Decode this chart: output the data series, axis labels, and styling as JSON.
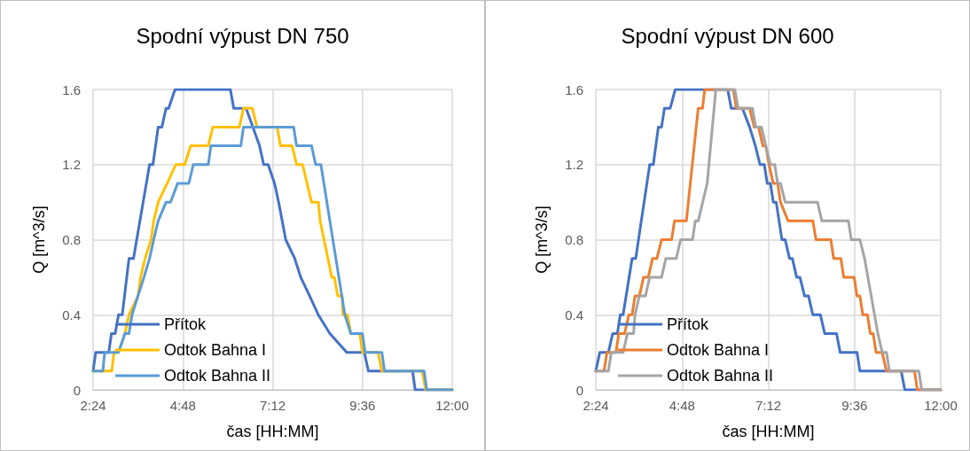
{
  "chart_data": [
    {
      "type": "line",
      "title": "Spodní výpust DN 750",
      "xlabel": "čas [HH:MM]",
      "ylabel": "Q [m^3/s]",
      "xlim": [
        2.4,
        12
      ],
      "xticks": [
        {
          "value": 2.4,
          "label": "2:24"
        },
        {
          "value": 4.8,
          "label": "4:48"
        },
        {
          "value": 7.2,
          "label": "7:12"
        },
        {
          "value": 9.6,
          "label": "9:36"
        },
        {
          "value": 12,
          "label": "12:00"
        }
      ],
      "ylim": [
        0,
        1.6
      ],
      "yticks": [
        0,
        0.4,
        0.8,
        1.2,
        1.6
      ],
      "grid": true,
      "legend": "bottom left",
      "marker": "none",
      "line_style": "solid",
      "series": [
        {
          "name": "Přítok",
          "color": "#4472c4",
          "x": [
            2.4,
            2.47,
            2.82,
            2.89,
            2.99,
            3.08,
            3.18,
            3.36,
            3.48,
            3.91,
            4.0,
            4.14,
            4.24,
            4.35,
            4.42,
            4.59,
            6.07,
            6.16,
            6.49,
            6.85,
            6.96,
            7.08,
            7.25,
            7.36,
            7.55,
            7.79,
            7.95,
            8.19,
            8.42,
            8.73,
            9.18,
            9.65,
            9.76,
            10.94,
            11.01,
            12
          ],
          "values": [
            0.1,
            0.2,
            0.2,
            0.3,
            0.3,
            0.4,
            0.4,
            0.7,
            0.7,
            1.2,
            1.2,
            1.4,
            1.4,
            1.5,
            1.5,
            1.6,
            1.6,
            1.5,
            1.5,
            1.3,
            1.2,
            1.2,
            1.1,
            1.0,
            0.8,
            0.7,
            0.6,
            0.5,
            0.4,
            0.3,
            0.2,
            0.2,
            0.1,
            0.1,
            0,
            0
          ]
        },
        {
          "name": "Odtok Bahna I",
          "color": "#ffc000",
          "x": [
            2.4,
            2.9,
            2.96,
            3.08,
            3.25,
            3.36,
            3.6,
            3.67,
            3.79,
            3.95,
            4.02,
            4.14,
            4.38,
            4.61,
            4.85,
            5.01,
            5.48,
            5.6,
            6.31,
            6.42,
            6.66,
            6.78,
            7.32,
            7.41,
            7.72,
            7.84,
            8.0,
            8.12,
            8.24,
            8.42,
            8.47,
            8.78,
            8.85,
            8.94,
            9.06,
            9.08,
            9.2,
            9.29,
            9.53,
            9.6,
            10.02,
            10.12,
            11.2,
            11.29,
            12
          ],
          "values": [
            0.1,
            0.1,
            0.2,
            0.2,
            0.3,
            0.4,
            0.5,
            0.6,
            0.7,
            0.8,
            0.9,
            1.0,
            1.1,
            1.2,
            1.2,
            1.3,
            1.3,
            1.4,
            1.4,
            1.5,
            1.5,
            1.4,
            1.4,
            1.3,
            1.3,
            1.2,
            1.2,
            1.1,
            1.0,
            1.0,
            0.9,
            0.6,
            0.6,
            0.5,
            0.5,
            0.4,
            0.4,
            0.3,
            0.3,
            0.2,
            0.2,
            0.1,
            0.1,
            0,
            0
          ]
        },
        {
          "name": "Odtok Bahna II",
          "color": "#5b9bd5",
          "x": [
            2.4,
            2.66,
            2.71,
            3.08,
            3.25,
            3.36,
            3.44,
            3.6,
            3.76,
            3.91,
            4.02,
            4.14,
            4.35,
            4.47,
            4.66,
            4.96,
            5.08,
            5.48,
            5.55,
            6.35,
            6.42,
            7.76,
            7.84,
            8.24,
            8.35,
            8.49,
            9.13,
            9.29,
            9.6,
            9.67,
            10.12,
            10.19,
            11.25,
            11.32,
            12
          ],
          "values": [
            0.1,
            0.1,
            0.2,
            0.2,
            0.3,
            0.3,
            0.4,
            0.5,
            0.6,
            0.7,
            0.8,
            0.9,
            1.0,
            1.0,
            1.1,
            1.1,
            1.2,
            1.2,
            1.3,
            1.3,
            1.4,
            1.4,
            1.3,
            1.3,
            1.2,
            1.2,
            0.4,
            0.3,
            0.3,
            0.2,
            0.2,
            0.1,
            0.1,
            0,
            0
          ]
        }
      ]
    },
    {
      "type": "line",
      "title": "Spodní výpust DN 600",
      "xlabel": "čas [HH:MM]",
      "ylabel": "Q [m^3/s]",
      "xlim": [
        2.4,
        12
      ],
      "xticks": [
        {
          "value": 2.4,
          "label": "2:24"
        },
        {
          "value": 4.8,
          "label": "4:48"
        },
        {
          "value": 7.2,
          "label": "7:12"
        },
        {
          "value": 9.6,
          "label": "9:36"
        },
        {
          "value": 12,
          "label": "12:00"
        }
      ],
      "ylim": [
        0,
        1.6
      ],
      "yticks": [
        0,
        0.4,
        0.8,
        1.2,
        1.6
      ],
      "grid": true,
      "legend": "bottom left",
      "marker": "none",
      "line_style": "solid",
      "series": [
        {
          "name": "Přítok",
          "color": "#4472c4",
          "x": [
            2.4,
            2.51,
            2.75,
            2.87,
            3.0,
            3.08,
            3.16,
            3.41,
            3.51,
            3.9,
            4.0,
            4.14,
            4.23,
            4.31,
            4.47,
            4.61,
            6.07,
            6.17,
            6.48,
            6.68,
            6.84,
            6.97,
            7.09,
            7.17,
            7.26,
            7.34,
            7.42,
            7.58,
            7.67,
            7.79,
            7.87,
            7.99,
            8.08,
            8.21,
            8.32,
            8.44,
            8.65,
            8.77,
            9.1,
            9.2,
            9.67,
            9.75,
            10.9,
            11.0,
            12
          ],
          "values": [
            0.1,
            0.2,
            0.2,
            0.3,
            0.3,
            0.4,
            0.4,
            0.7,
            0.7,
            1.2,
            1.2,
            1.4,
            1.4,
            1.5,
            1.5,
            1.6,
            1.6,
            1.5,
            1.5,
            1.4,
            1.3,
            1.2,
            1.2,
            1.1,
            1.1,
            1.0,
            1.0,
            0.8,
            0.8,
            0.7,
            0.7,
            0.6,
            0.6,
            0.5,
            0.5,
            0.4,
            0.4,
            0.3,
            0.3,
            0.2,
            0.2,
            0.1,
            0.1,
            0,
            0
          ]
        },
        {
          "name": "Odtok Bahna I",
          "color": "#ed7d31",
          "x": [
            2.4,
            2.63,
            2.71,
            2.96,
            3.04,
            3.2,
            3.32,
            3.41,
            3.49,
            3.61,
            3.73,
            3.86,
            3.98,
            4.1,
            4.23,
            4.51,
            4.59,
            4.92,
            5.25,
            5.37,
            5.43,
            6.23,
            6.31,
            6.68,
            6.81,
            6.93,
            7.05,
            7.13,
            7.22,
            7.34,
            7.46,
            7.54,
            7.75,
            8.44,
            8.53,
            8.94,
            9.02,
            9.22,
            9.3,
            9.59,
            9.67,
            9.75,
            9.83,
            9.96,
            10.04,
            10.12,
            10.2,
            10.37,
            10.49,
            11.27,
            11.35,
            12
          ],
          "values": [
            0.1,
            0.1,
            0.2,
            0.2,
            0.3,
            0.3,
            0.4,
            0.4,
            0.5,
            0.5,
            0.6,
            0.6,
            0.7,
            0.7,
            0.8,
            0.8,
            0.9,
            0.9,
            1.5,
            1.5,
            1.6,
            1.6,
            1.5,
            1.5,
            1.4,
            1.4,
            1.3,
            1.3,
            1.2,
            1.1,
            1.1,
            1.0,
            0.9,
            0.9,
            0.8,
            0.8,
            0.7,
            0.7,
            0.6,
            0.6,
            0.5,
            0.5,
            0.4,
            0.4,
            0.3,
            0.3,
            0.2,
            0.2,
            0.1,
            0.1,
            0,
            0
          ]
        },
        {
          "name": "Odtok Bahna II",
          "color": "#a5a5a5",
          "x": [
            2.4,
            2.75,
            2.83,
            3.16,
            3.28,
            3.45,
            3.49,
            3.61,
            3.78,
            3.9,
            4.23,
            4.35,
            4.64,
            4.76,
            5.09,
            5.17,
            5.25,
            5.5,
            5.74,
            6.27,
            6.36,
            6.76,
            6.85,
            7.01,
            7.13,
            7.26,
            7.38,
            7.46,
            7.54,
            7.67,
            8.57,
            8.69,
            9.43,
            9.51,
            9.75,
            9.88,
            10.25,
            10.37,
            10.49,
            10.57,
            11.39,
            11.47,
            12
          ],
          "values": [
            0.1,
            0.1,
            0.2,
            0.2,
            0.3,
            0.3,
            0.4,
            0.5,
            0.5,
            0.6,
            0.6,
            0.7,
            0.7,
            0.8,
            0.8,
            0.9,
            0.9,
            1.1,
            1.6,
            1.6,
            1.5,
            1.5,
            1.4,
            1.4,
            1.3,
            1.2,
            1.2,
            1.1,
            1.1,
            1.0,
            1.0,
            0.9,
            0.9,
            0.8,
            0.8,
            0.7,
            0.3,
            0.2,
            0.2,
            0.1,
            0.1,
            0,
            0
          ]
        }
      ]
    }
  ]
}
